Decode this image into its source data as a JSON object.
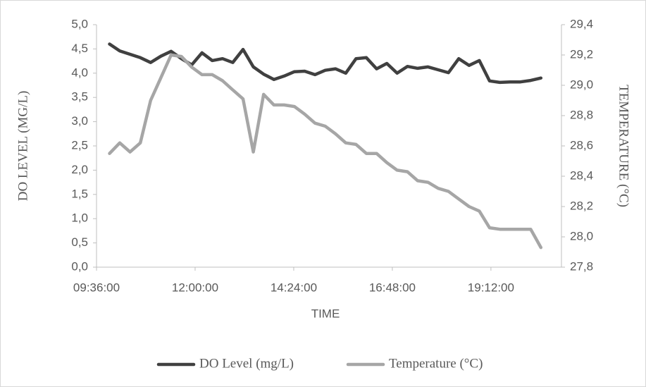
{
  "chart_data": {
    "type": "line",
    "x_label": "TIME",
    "y_label": "DO LEVEL  (MG/L)",
    "y2_label": "TEMPERATURE (°C)",
    "x": [
      "09:55:00",
      "10:10:00",
      "10:25:00",
      "10:40:00",
      "10:55:00",
      "11:10:00",
      "11:25:00",
      "11:40:00",
      "11:55:00",
      "12:10:00",
      "12:25:00",
      "12:40:00",
      "12:55:00",
      "13:10:00",
      "13:25:00",
      "13:40:00",
      "13:55:00",
      "14:10:00",
      "14:25:00",
      "14:40:00",
      "14:55:00",
      "15:10:00",
      "15:25:00",
      "15:40:00",
      "15:55:00",
      "16:10:00",
      "16:25:00",
      "16:40:00",
      "16:55:00",
      "17:10:00",
      "17:25:00",
      "17:40:00",
      "17:55:00",
      "18:10:00",
      "18:25:00",
      "18:40:00",
      "18:55:00",
      "19:10:00",
      "19:25:00",
      "19:40:00",
      "19:55:00",
      "20:10:00",
      "20:25:00"
    ],
    "series": [
      {
        "name": "DO Level (mg/L)",
        "color": "#404040",
        "values": [
          4.6,
          4.46,
          4.39,
          4.32,
          4.22,
          4.35,
          4.45,
          4.3,
          4.17,
          4.42,
          4.26,
          4.3,
          4.22,
          4.49,
          4.13,
          3.98,
          3.87,
          3.94,
          4.03,
          4.04,
          3.97,
          4.06,
          4.09,
          4.0,
          4.3,
          4.32,
          4.09,
          4.2,
          4.0,
          4.14,
          4.1,
          4.13,
          4.07,
          4.01,
          4.3,
          4.16,
          4.26,
          3.84,
          3.81,
          3.82,
          3.82,
          3.85,
          3.9
        ]
      },
      {
        "name": "Temperature (°C)",
        "color": "#a6a6a6",
        "axis": "y2",
        "values": [
          28.55,
          28.62,
          28.56,
          28.62,
          28.9,
          29.05,
          29.2,
          29.19,
          29.12,
          29.07,
          29.07,
          29.03,
          28.97,
          28.91,
          28.56,
          28.94,
          28.87,
          28.87,
          28.86,
          28.81,
          28.75,
          28.73,
          28.68,
          28.62,
          28.61,
          28.55,
          28.55,
          28.49,
          28.44,
          28.43,
          28.37,
          28.36,
          28.32,
          28.3,
          28.25,
          28.2,
          28.17,
          28.06,
          28.05,
          28.05,
          28.05,
          28.05,
          27.93
        ]
      }
    ],
    "xlim": [
      "09:36:00",
      "20:55:00"
    ],
    "xticks": [
      "09:36:00",
      "12:00:00",
      "14:24:00",
      "16:48:00",
      "19:12:00"
    ],
    "ylim": [
      0,
      5
    ],
    "yticks": [
      {
        "value": 0,
        "label": "0,0"
      },
      {
        "value": 0.5,
        "label": "0,5"
      },
      {
        "value": 1,
        "label": "1,0"
      },
      {
        "value": 1.5,
        "label": "1,5"
      },
      {
        "value": 2,
        "label": "2,0"
      },
      {
        "value": 2.5,
        "label": "2,5"
      },
      {
        "value": 3,
        "label": "3,0"
      },
      {
        "value": 3.5,
        "label": "3,5"
      },
      {
        "value": 4,
        "label": "4,0"
      },
      {
        "value": 4.5,
        "label": "4,5"
      },
      {
        "value": 5,
        "label": "5,0"
      }
    ],
    "y2lim": [
      27.8,
      29.4
    ],
    "y2ticks": [
      {
        "value": 27.8,
        "label": "27,8"
      },
      {
        "value": 28,
        "label": "28,0"
      },
      {
        "value": 28.2,
        "label": "28,2"
      },
      {
        "value": 28.4,
        "label": "28,4"
      },
      {
        "value": 28.6,
        "label": "28,6"
      },
      {
        "value": 28.8,
        "label": "28,8"
      },
      {
        "value": 29,
        "label": "29,0"
      },
      {
        "value": 29.2,
        "label": "29,2"
      },
      {
        "value": 29.4,
        "label": "29,4"
      }
    ],
    "grid": false,
    "legend": "bottom"
  }
}
